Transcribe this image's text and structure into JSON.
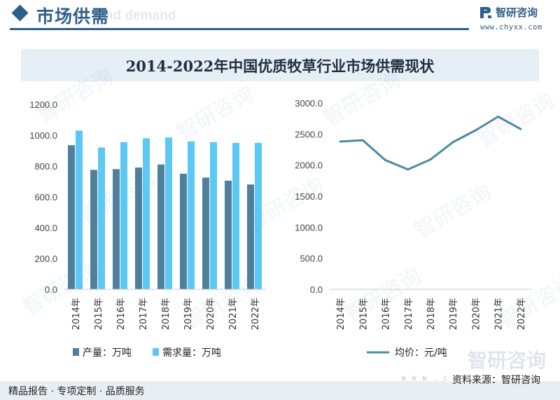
{
  "header": {
    "section_title": "市场供需",
    "section_title_en": "nd demand",
    "logo_text": "智研咨询",
    "logo_url": "www.chyxx.com"
  },
  "chart_title": "2014-2022年中国优质牧草行业市场供需现状",
  "footer": {
    "left": "精品报告 · 专项定制 · 品质服务",
    "right": "资料来源：智研咨询",
    "watermark_text": "智研咨询",
    "watermark_url": "W W W . C H Y X X . C O M"
  },
  "colors": {
    "brand": "#2f5f8a",
    "production": "#4f7f9b",
    "demand": "#5bc8f5",
    "price": "#4d89a8"
  },
  "chart_data": [
    {
      "type": "bar",
      "categories": [
        "2014年",
        "2015年",
        "2016年",
        "2017年",
        "2018年",
        "2019年",
        "2020年",
        "2021年",
        "2022年"
      ],
      "series": [
        {
          "name": "产量：万吨",
          "values": [
            935,
            775,
            780,
            790,
            810,
            750,
            725,
            705,
            680
          ]
        },
        {
          "name": "需求量：万吨",
          "values": [
            1030,
            920,
            955,
            980,
            985,
            960,
            955,
            950,
            950
          ]
        }
      ],
      "ylim": [
        0,
        1200
      ],
      "yticks": [
        "0.0",
        "200.0",
        "400.0",
        "600.0",
        "800.0",
        "1000.0",
        "1200.0"
      ],
      "grid": false,
      "legend": "bottom"
    },
    {
      "type": "line",
      "categories": [
        "2014年",
        "2015年",
        "2016年",
        "2017年",
        "2018年",
        "2019年",
        "2020年",
        "2021年",
        "2022年"
      ],
      "series": [
        {
          "name": "均价：元/吨",
          "values": [
            2380,
            2400,
            2080,
            1930,
            2090,
            2370,
            2560,
            2780,
            2580
          ]
        }
      ],
      "ylim": [
        0,
        3000
      ],
      "yticks": [
        "0.0",
        "500.0",
        "1000.0",
        "1500.0",
        "2000.0",
        "2500.0",
        "3000.0"
      ],
      "grid": false,
      "legend": "bottom"
    }
  ]
}
